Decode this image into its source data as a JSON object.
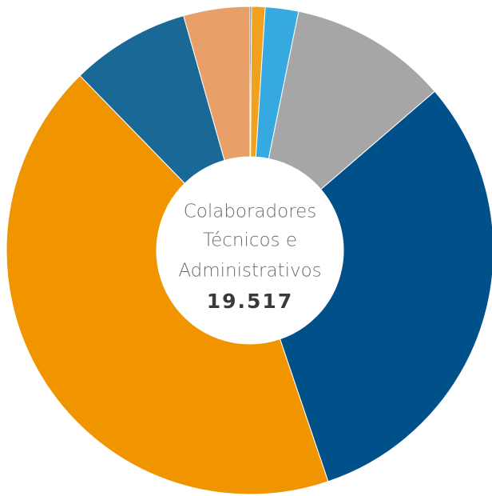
{
  "chart_data": {
    "type": "pie",
    "center_label": [
      "Colaboradores",
      "Técnicos e",
      "Administrativos"
    ],
    "total": "19.517",
    "values": [
      0.1,
      0.9,
      2.2,
      10.5,
      31.1,
      42.9,
      7.9,
      4.4
    ],
    "colors": [
      "#1f4e79",
      "#f0a21e",
      "#36a9e1",
      "#a6a6a6",
      "#00508a",
      "#f09400",
      "#1a6896",
      "#e8a068"
    ],
    "hole": true
  }
}
